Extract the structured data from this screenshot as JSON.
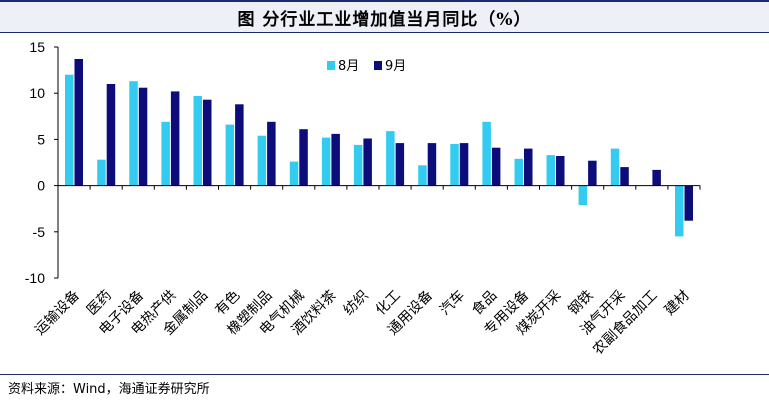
{
  "title": "图    分行业工业增加值当月同比（%）",
  "source": "资料来源：Wind，海通证券研究所",
  "colors": {
    "aug": "#33ccf0",
    "sep": "#0c0c7a"
  },
  "chart_data": {
    "type": "bar",
    "ylim": [
      -10,
      15
    ],
    "yticks": [
      -10,
      -5,
      0,
      5,
      10,
      15
    ],
    "legend": "top-center",
    "grid": false,
    "categories": [
      "运输设备",
      "医药",
      "电子设备",
      "电热产供",
      "金属制品",
      "有色",
      "橡塑制品",
      "电气机械",
      "酒饮料茶",
      "纺织",
      "化工",
      "通用设备",
      "汽车",
      "食品",
      "专用设备",
      "煤炭开采",
      "钢铁",
      "油气开采",
      "农副食品加工",
      "建材"
    ],
    "series": [
      {
        "name": "8月",
        "values": [
          12.0,
          2.8,
          11.3,
          6.9,
          9.7,
          6.6,
          5.4,
          2.6,
          5.2,
          4.4,
          5.9,
          2.2,
          4.5,
          6.9,
          2.9,
          3.3,
          -2.1,
          4.0,
          0.0,
          -5.5
        ]
      },
      {
        "name": "9月",
        "values": [
          13.7,
          11.0,
          10.6,
          10.2,
          9.3,
          8.8,
          6.9,
          6.1,
          5.6,
          5.1,
          4.6,
          4.6,
          4.6,
          4.1,
          4.0,
          3.2,
          2.7,
          2.0,
          1.7,
          -3.8
        ]
      }
    ]
  }
}
